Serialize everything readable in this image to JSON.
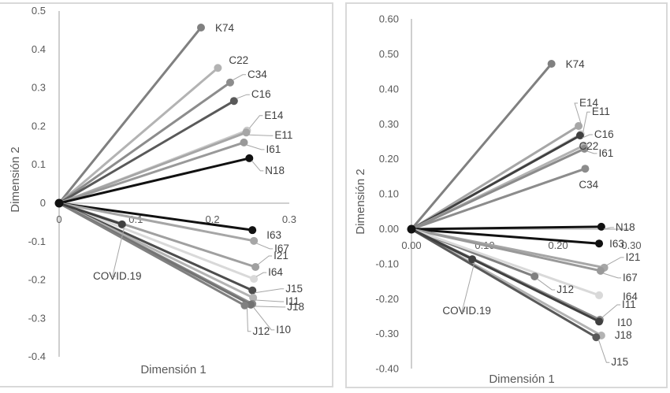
{
  "chart_data": [
    {
      "type": "scatter",
      "subtype": "vectors-from-origin",
      "title": "",
      "xlabel": "Dimensión 1",
      "ylabel": "Dimensión 2",
      "xlim": [
        0,
        0.3
      ],
      "ylim": [
        -0.4,
        0.5
      ],
      "x_ticks": [
        "0",
        "0.1",
        "0.2",
        "0.3"
      ],
      "x_tick_values": [
        0,
        0.1,
        0.2,
        0.3
      ],
      "y_ticks": [
        "0.5",
        "0.4",
        "0.3",
        "0.2",
        "0.1",
        "0",
        "-0.1",
        "-0.2",
        "-0.3",
        "-0.4"
      ],
      "y_tick_values": [
        0.5,
        0.4,
        0.3,
        0.2,
        0.1,
        0,
        -0.1,
        -0.2,
        -0.3,
        -0.4
      ],
      "grid": false,
      "legend": "none",
      "points": [
        {
          "label": "K74",
          "x": 0.185,
          "y": 0.457,
          "color": "#808080"
        },
        {
          "label": "C22",
          "x": 0.207,
          "y": 0.352,
          "color": "#b3b3b3"
        },
        {
          "label": "C34",
          "x": 0.223,
          "y": 0.314,
          "color": "#8c8c8c"
        },
        {
          "label": "C16",
          "x": 0.228,
          "y": 0.266,
          "color": "#595959"
        },
        {
          "label": "E14",
          "x": 0.245,
          "y": 0.189,
          "color": "#c9c9c9"
        },
        {
          "label": "E11",
          "x": 0.244,
          "y": 0.184,
          "color": "#a6a6a6"
        },
        {
          "label": "I61",
          "x": 0.241,
          "y": 0.158,
          "color": "#999999"
        },
        {
          "label": "N18",
          "x": 0.248,
          "y": 0.117,
          "color": "#111111"
        },
        {
          "label": "I63",
          "x": 0.252,
          "y": -0.07,
          "color": "#111111"
        },
        {
          "label": "I67",
          "x": 0.254,
          "y": -0.098,
          "color": "#a6a6a6"
        },
        {
          "label": "I21",
          "x": 0.256,
          "y": -0.166,
          "color": "#a0a0a0"
        },
        {
          "label": "I64",
          "x": 0.254,
          "y": -0.197,
          "color": "#d9d9d9"
        },
        {
          "label": "J15",
          "x": 0.252,
          "y": -0.227,
          "color": "#4d4d4d"
        },
        {
          "label": "I11",
          "x": 0.253,
          "y": -0.246,
          "color": "#b3b3b3"
        },
        {
          "label": "J18",
          "x": 0.252,
          "y": -0.262,
          "color": "#8c8c8c"
        },
        {
          "label": "I10",
          "x": 0.25,
          "y": -0.264,
          "color": "#737373"
        },
        {
          "label": "J12",
          "x": 0.242,
          "y": -0.266,
          "color": "#808080"
        },
        {
          "label": "COVID.19",
          "x": 0.082,
          "y": -0.055,
          "color": "#404040"
        }
      ]
    },
    {
      "type": "scatter",
      "subtype": "vectors-from-origin",
      "title": "",
      "xlabel": "Dimensión 1",
      "ylabel": "Dimensión 2",
      "xlim": [
        0,
        0.3
      ],
      "ylim": [
        -0.4,
        0.6
      ],
      "x_ticks": [
        "0.00",
        "0.10",
        "0.20",
        "0.30"
      ],
      "x_tick_values": [
        0,
        0.1,
        0.2,
        0.3
      ],
      "y_ticks": [
        "0.60",
        "0.50",
        "0.40",
        "0.30",
        "0.20",
        "0.10",
        "0.00",
        "-0.10",
        "-0.20",
        "-0.30",
        "-0.40"
      ],
      "y_tick_values": [
        0.6,
        0.5,
        0.4,
        0.3,
        0.2,
        0.1,
        0,
        -0.1,
        -0.2,
        -0.3,
        -0.4
      ],
      "grid": false,
      "legend": "none",
      "points": [
        {
          "label": "K74",
          "x": 0.191,
          "y": 0.473,
          "color": "#808080"
        },
        {
          "label": "E14",
          "x": 0.228,
          "y": 0.295,
          "color": "#a6a6a6"
        },
        {
          "label": "E11",
          "x": 0.231,
          "y": 0.272,
          "color": "#d0d0d0"
        },
        {
          "label": "C16",
          "x": 0.23,
          "y": 0.268,
          "color": "#404040"
        },
        {
          "label": "C22",
          "x": 0.235,
          "y": 0.239,
          "color": "#b3b3b3"
        },
        {
          "label": "I61",
          "x": 0.236,
          "y": 0.23,
          "color": "#8c8c8c"
        },
        {
          "label": "C34",
          "x": 0.237,
          "y": 0.173,
          "color": "#8c8c8c"
        },
        {
          "label": "N18",
          "x": 0.259,
          "y": 0.007,
          "color": "#111111"
        },
        {
          "label": "I63",
          "x": 0.256,
          "y": -0.041,
          "color": "#111111"
        },
        {
          "label": "I21",
          "x": 0.263,
          "y": -0.11,
          "color": "#a6a6a6"
        },
        {
          "label": "I67",
          "x": 0.258,
          "y": -0.119,
          "color": "#999999"
        },
        {
          "label": "J12",
          "x": 0.168,
          "y": -0.135,
          "color": "#808080"
        },
        {
          "label": "I64",
          "x": 0.256,
          "y": -0.189,
          "color": "#d9d9d9"
        },
        {
          "label": "I11",
          "x": 0.257,
          "y": -0.259,
          "color": "#8c8c8c"
        },
        {
          "label": "I10",
          "x": 0.256,
          "y": -0.264,
          "color": "#404040"
        },
        {
          "label": "J18",
          "x": 0.259,
          "y": -0.304,
          "color": "#b3b3b3"
        },
        {
          "label": "J15",
          "x": 0.252,
          "y": -0.309,
          "color": "#595959"
        },
        {
          "label": "COVID.19",
          "x": 0.083,
          "y": -0.086,
          "color": "#404040"
        }
      ]
    }
  ]
}
